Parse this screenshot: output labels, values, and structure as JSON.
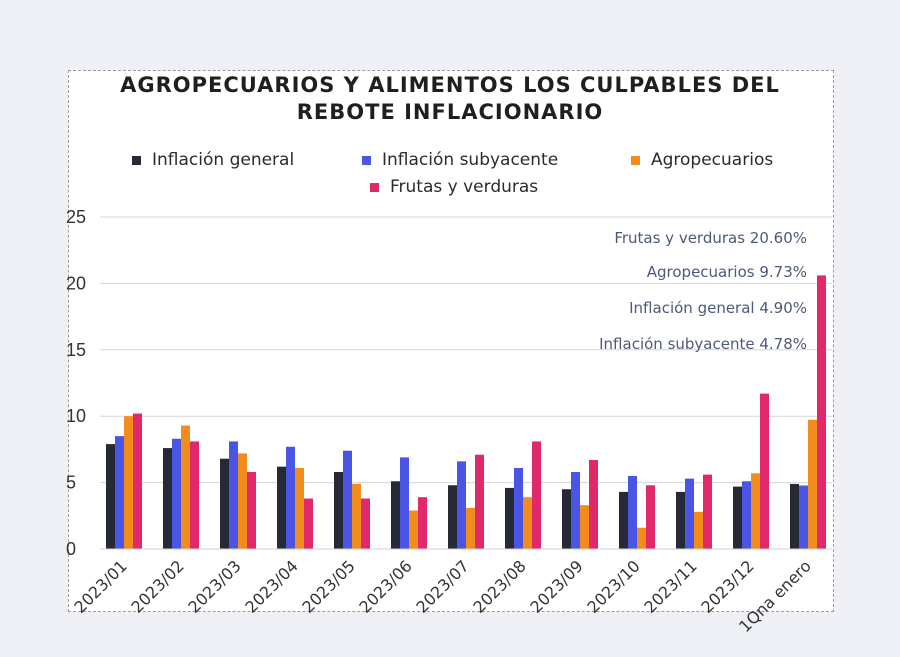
{
  "chart_data": {
    "type": "bar",
    "title": "AGROPECUARIOS Y ALIMENTOS LOS CULPABLES DEL REBOTE INFLACIONARIO",
    "title_lines": [
      "AGROPECUARIOS Y ALIMENTOS LOS CULPABLES DEL",
      "REBOTE INFLACIONARIO"
    ],
    "xlabel": "",
    "ylabel": "",
    "ylim": [
      0,
      25
    ],
    "yticks": [
      0,
      5,
      10,
      15,
      20,
      25
    ],
    "grid": true,
    "legend_position": "top",
    "categories": [
      "2023/01",
      "2023/02",
      "2023/03",
      "2023/04",
      "2023/05",
      "2023/06",
      "2023/07",
      "2023/08",
      "2023/09",
      "2023/10",
      "2023/11",
      "2023/12",
      "1Qna enero"
    ],
    "series": [
      {
        "name": "Inflación general",
        "color": "#262a36",
        "values": [
          7.9,
          7.6,
          6.8,
          6.2,
          5.8,
          5.1,
          4.8,
          4.6,
          4.5,
          4.3,
          4.3,
          4.7,
          4.9
        ]
      },
      {
        "name": "Inflación subyacente",
        "color": "#4a55e6",
        "values": [
          8.5,
          8.3,
          8.1,
          7.7,
          7.4,
          6.9,
          6.6,
          6.1,
          5.8,
          5.5,
          5.3,
          5.1,
          4.78
        ]
      },
      {
        "name": "Agropecuarios",
        "color": "#f28c1c",
        "values": [
          10.0,
          9.3,
          7.2,
          6.1,
          4.9,
          2.9,
          3.1,
          3.9,
          3.3,
          1.6,
          2.8,
          5.7,
          9.73
        ]
      },
      {
        "name": "Frutas y verduras",
        "color": "#e0286b",
        "values": [
          10.2,
          8.1,
          5.8,
          3.8,
          3.8,
          3.9,
          7.1,
          8.1,
          6.7,
          4.8,
          5.6,
          11.7,
          20.6
        ]
      }
    ],
    "annotations": [
      "Frutas y verduras 20.60%",
      "Agropecuarios 9.73%",
      "Inflación general 4.90%",
      "Inflación subyacente 4.78%"
    ]
  }
}
